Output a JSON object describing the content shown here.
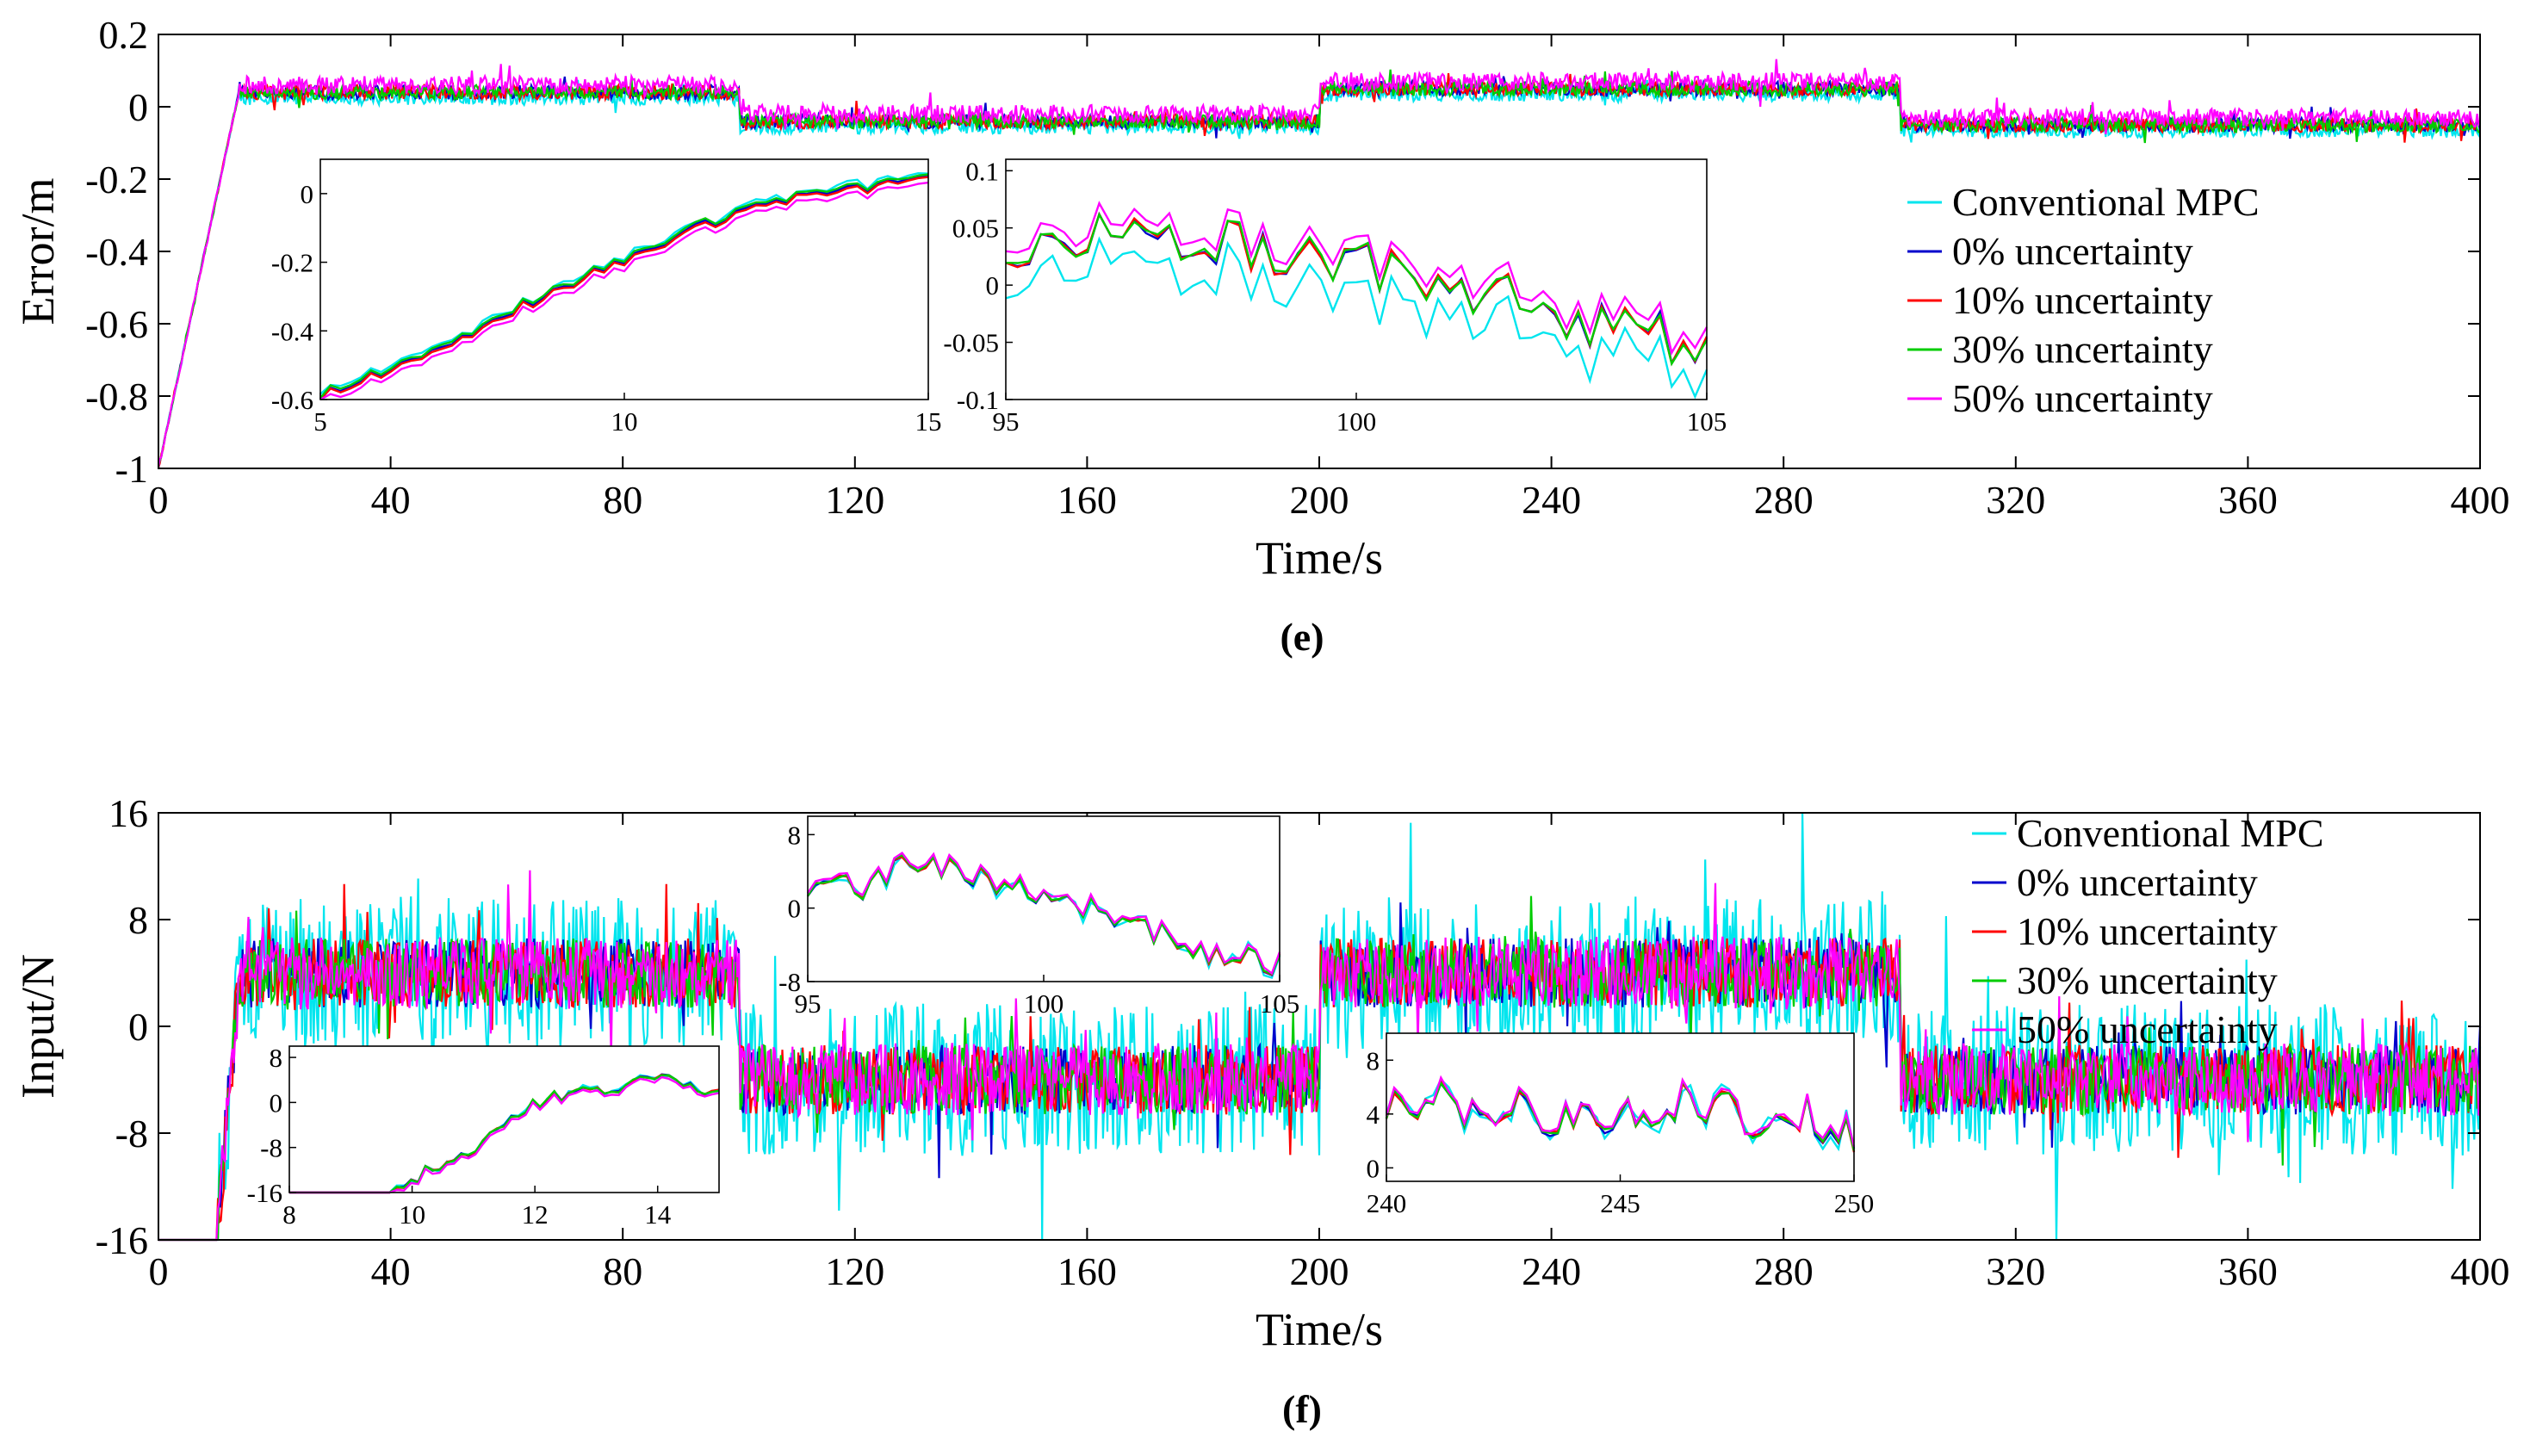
{
  "chart_data": [
    {
      "id": "e",
      "type": "line",
      "caption": "(e)",
      "xlabel": "Time/s",
      "ylabel": "Error/m",
      "xlim": [
        0,
        400
      ],
      "ylim": [
        -1,
        0.2
      ],
      "xticks": [
        0,
        40,
        80,
        120,
        160,
        200,
        240,
        280,
        320,
        360,
        400
      ],
      "yticks": [
        -1,
        -0.8,
        -0.6,
        -0.4,
        -0.2,
        0,
        0.2
      ],
      "yticklabels": [
        "-1",
        "-0.8",
        "-0.6",
        "-0.4",
        "-0.2",
        "0",
        "0.2"
      ],
      "legend": {
        "position": "right",
        "entries": [
          {
            "name": "Conventional MPC",
            "color": "#00e5ee"
          },
          {
            "name": "0% uncertainty",
            "color": "#0000cc"
          },
          {
            "name": "10% uncertainty",
            "color": "#ff0000"
          },
          {
            "name": "30% uncertainty",
            "color": "#00cc00"
          },
          {
            "name": "50% uncertainty",
            "color": "#ff00ff"
          }
        ]
      },
      "model": {
        "segments": [
          {
            "from": 0,
            "to": 14,
            "start": -1.0,
            "end": 0.05
          },
          {
            "from": 14,
            "to": 100,
            "level": 0.04
          },
          {
            "from": 100,
            "to": 200,
            "level": -0.04
          },
          {
            "from": 200,
            "to": 300,
            "level": 0.05
          },
          {
            "from": 300,
            "to": 400,
            "level": -0.05
          }
        ],
        "noise": 0.02,
        "noise_scale_by_series": [
          1.0,
          1.0,
          1.0,
          1.0,
          1.25
        ],
        "offset_by_series": [
          -0.015,
          0.0,
          0.0,
          0.0,
          0.02
        ]
      },
      "insets": [
        {
          "xlim": [
            5,
            15
          ],
          "ylim": [
            -0.6,
            0.1
          ],
          "xticks": [
            5,
            10,
            15
          ],
          "yticks": [
            -0.6,
            -0.4,
            -0.2,
            0
          ],
          "xticklabels": [
            "5",
            "10",
            "15"
          ],
          "yticklabels": [
            "-0.6",
            "-0.4",
            "-0.2",
            "0"
          ],
          "base": [
            [
              5,
              -0.59
            ],
            [
              6,
              -0.52
            ],
            [
              7,
              -0.45
            ],
            [
              8,
              -0.35
            ],
            [
              9,
              -0.27
            ],
            [
              10,
              -0.19
            ],
            [
              11,
              -0.11
            ],
            [
              12,
              -0.05
            ],
            [
              13,
              0.0
            ],
            [
              14,
              0.02
            ],
            [
              15,
              0.05
            ]
          ],
          "noise": 0.015,
          "offset_by_series": [
            0.01,
            0.0,
            -0.005,
            0.005,
            -0.02
          ]
        },
        {
          "xlim": [
            95,
            105
          ],
          "ylim": [
            -0.1,
            0.11
          ],
          "xticks": [
            95,
            100,
            105
          ],
          "yticks": [
            -0.1,
            -0.05,
            0,
            0.05,
            0.1
          ],
          "xticklabels": [
            "95",
            "100",
            "105"
          ],
          "yticklabels": [
            "-0.1",
            "-0.05",
            "0",
            "0.05",
            "0.1"
          ],
          "base": [
            [
              95,
              0.03
            ],
            [
              96,
              0.04
            ],
            [
              97,
              0.05
            ],
            [
              98,
              0.04
            ],
            [
              99,
              0.03
            ],
            [
              100,
              0.02
            ],
            [
              101,
              0.01
            ],
            [
              102,
              -0.01
            ],
            [
              103,
              -0.03
            ],
            [
              104,
              -0.04
            ],
            [
              105,
              -0.06
            ]
          ],
          "noise": 0.022,
          "offset_by_series": [
            -0.025,
            0.0,
            0.0,
            0.0,
            0.01
          ]
        }
      ]
    },
    {
      "id": "f",
      "type": "line",
      "caption": "(f)",
      "xlabel": "Time/s",
      "ylabel": "Input/N",
      "xlim": [
        0,
        400
      ],
      "ylim": [
        -16,
        16
      ],
      "xticks": [
        0,
        40,
        80,
        120,
        160,
        200,
        240,
        280,
        320,
        360,
        400
      ],
      "yticks": [
        -16,
        -8,
        0,
        8,
        16
      ],
      "yticklabels": [
        "-16",
        "-8",
        "0",
        "8",
        "16"
      ],
      "legend": {
        "position": "top-right",
        "entries": [
          {
            "name": "Conventional MPC",
            "color": "#00e5ee"
          },
          {
            "name": "0% uncertainty",
            "color": "#0000cc"
          },
          {
            "name": "10% uncertainty",
            "color": "#ff0000"
          },
          {
            "name": "30% uncertainty",
            "color": "#00cc00"
          },
          {
            "name": "50% uncertainty",
            "color": "#ff00ff"
          }
        ]
      },
      "model": {
        "segments": [
          {
            "from": 0,
            "to": 10,
            "level": -16
          },
          {
            "from": 10,
            "to": 14,
            "start": -16,
            "end": 4
          },
          {
            "from": 14,
            "to": 100,
            "level": 4
          },
          {
            "from": 100,
            "to": 200,
            "level": -4
          },
          {
            "from": 200,
            "to": 300,
            "level": 4
          },
          {
            "from": 300,
            "to": 400,
            "level": -4
          }
        ],
        "noise": 2.6,
        "noise_scale_by_series": [
          2.2,
          1.0,
          1.0,
          1.0,
          1.05
        ],
        "offset_by_series": [
          0.0,
          0.0,
          0.0,
          0.0,
          0.0
        ]
      },
      "insets": [
        {
          "xlim": [
            8,
            15
          ],
          "ylim": [
            -16,
            10
          ],
          "xticks": [
            8,
            10,
            12,
            14
          ],
          "yticks": [
            -16,
            -8,
            0,
            8
          ],
          "xticklabels": [
            "8",
            "10",
            "12",
            "14"
          ],
          "yticklabels": [
            "-16",
            "-8",
            "0",
            "8"
          ],
          "base": [
            [
              8,
              -16
            ],
            [
              9,
              -16
            ],
            [
              9.6,
              -16
            ],
            [
              10.3,
              -12
            ],
            [
              11,
              -8
            ],
            [
              11.6,
              -2
            ],
            [
              12.3,
              1
            ],
            [
              13,
              2
            ],
            [
              14,
              4
            ],
            [
              15,
              2
            ]
          ],
          "noise": 1.2,
          "offset_by_series": [
            0.0,
            0.0,
            0.0,
            0.0,
            -0.5
          ]
        },
        {
          "xlim": [
            95,
            105
          ],
          "ylim": [
            -8,
            10
          ],
          "xticks": [
            95,
            100,
            105
          ],
          "yticks": [
            -8,
            0,
            8
          ],
          "xticklabels": [
            "95",
            "100",
            "105"
          ],
          "yticklabels": [
            "-8",
            "0",
            "8"
          ],
          "base": [
            [
              95,
              2
            ],
            [
              96,
              2
            ],
            [
              97,
              5
            ],
            [
              98,
              4
            ],
            [
              99,
              3
            ],
            [
              100,
              1
            ],
            [
              101,
              0
            ],
            [
              102,
              -2
            ],
            [
              103,
              -4
            ],
            [
              104,
              -5
            ],
            [
              105,
              -6
            ]
          ],
          "noise": 1.5,
          "offset_by_series": [
            0.0,
            0.0,
            0.0,
            0.0,
            0.3
          ]
        },
        {
          "xlim": [
            240,
            250
          ],
          "ylim": [
            -1,
            10
          ],
          "xticks": [
            240,
            245,
            250
          ],
          "yticks": [
            0,
            4,
            8
          ],
          "xticklabels": [
            "240",
            "245",
            "250"
          ],
          "yticklabels": [
            "0",
            "4",
            "8"
          ],
          "base": [
            [
              240,
              4
            ],
            [
              241,
              5
            ],
            [
              242,
              4
            ],
            [
              243,
              4
            ],
            [
              244,
              3
            ],
            [
              245,
              4
            ],
            [
              246,
              5
            ],
            [
              247,
              4
            ],
            [
              248,
              4
            ],
            [
              249,
              4
            ],
            [
              250,
              3
            ]
          ],
          "noise": 1.8,
          "offset_by_series": [
            0.0,
            0.0,
            0.0,
            0.0,
            0.2
          ]
        }
      ]
    }
  ]
}
